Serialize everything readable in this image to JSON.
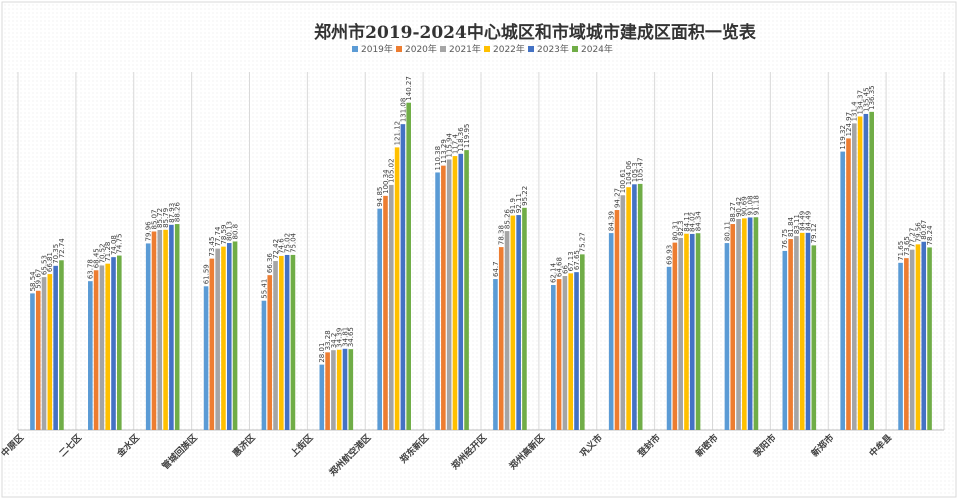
{
  "chart_data": {
    "type": "bar",
    "title": "郑州市2019-2024中心城区和市域城市建成区面积一览表",
    "categories": [
      "中原区",
      "二七区",
      "金水区",
      "管城回族区",
      "惠济区",
      "上街区",
      "郑州航空港区",
      "郑东新区",
      "郑州经开区",
      "郑州高新区",
      "巩义市",
      "登封市",
      "新密市",
      "荥阳市",
      "新郑市",
      "中牟县"
    ],
    "series": [
      {
        "name": "2019年",
        "color": "#5b9bd5",
        "values": [
          58.54,
          63.78,
          79.96,
          61.59,
          55.41,
          28.01,
          94.85,
          110.38,
          64.7,
          62.14,
          84.39,
          69.93,
          80.11,
          76.75,
          119.32,
          71.65
        ]
      },
      {
        "name": "2020年",
        "color": "#ed7d31",
        "values": [
          59.67,
          68.45,
          85.07,
          73.45,
          66.36,
          33.28,
          100.34,
          113.29,
          78.38,
          64.68,
          94.27,
          80.31,
          88.27,
          81.84,
          124.97,
          73.65
        ]
      },
      {
        "name": "2021年",
        "color": "#a5a5a5",
        "values": [
          65.53,
          70.52,
          85.72,
          77.74,
          72.42,
          34.2,
          105.02,
          115.94,
          85.26,
          66,
          100.61,
          82.3,
          90.42,
          83.11,
          131.4,
          77.27
        ]
      },
      {
        "name": "2022年",
        "color": "#ffc000",
        "values": [
          66.81,
          71.28,
          85.79,
          78.59,
          74.6,
          34.39,
          121.12,
          117.4,
          91.9,
          67.13,
          104.06,
          84.11,
          90.69,
          84.49,
          134.37,
          79.56
        ]
      },
      {
        "name": "2023年",
        "color": "#4472c4",
        "values": [
          70.35,
          74.08,
          87.93,
          80.13,
          75.02,
          34.81,
          131.08,
          118.36,
          92.11,
          67.65,
          105.3,
          84.02,
          91.08,
          84.49,
          135.45,
          80.67
        ]
      },
      {
        "name": "2024年",
        "color": "#70ad47",
        "values": [
          72.74,
          74.75,
          88.26,
          80.8,
          75.04,
          34.65,
          140.27,
          119.95,
          95.22,
          75.27,
          105.47,
          84.34,
          91.18,
          79.12,
          136.35,
          78.24
        ]
      }
    ],
    "ylim": [
      0,
      150
    ],
    "grid": true,
    "legend": "top"
  }
}
